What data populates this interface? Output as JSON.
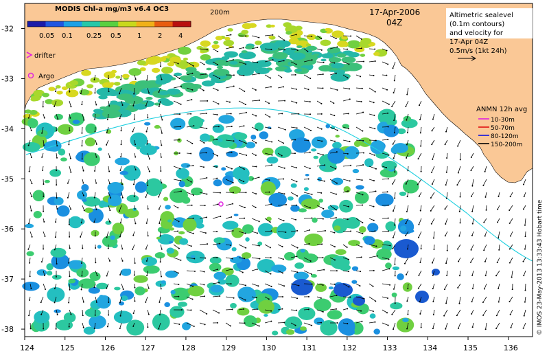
{
  "colorbar": {
    "title": "MODIS Chl-a mg/m3 v6.4 OC3",
    "ticks": [
      "0.05",
      "0.1",
      "0.25",
      "0.5",
      "1",
      "2",
      "4"
    ],
    "colors": [
      "#1a1aa8",
      "#1f55e0",
      "#1aa0e6",
      "#24c8a8",
      "#58d040",
      "#c8d81c",
      "#f0b018",
      "#e85c10",
      "#b81010"
    ]
  },
  "header": {
    "isobath_label": "200m",
    "date": "17-Apr-2006",
    "time": "04Z"
  },
  "legend_top": {
    "lines": [
      "Altimetric sealevel",
      "(0.1m contours)",
      "and velocity for",
      "17-Apr 04Z",
      "0.5m/s (1kt 24h)"
    ]
  },
  "legend_left": {
    "drifter": "drifter",
    "argo": "Argo"
  },
  "anmn": {
    "title": "ANMN 12h avg",
    "items": [
      {
        "label": "10-30m",
        "color": "#e020e0"
      },
      {
        "label": "50-70m",
        "color": "#e01010"
      },
      {
        "label": "80-120m",
        "color": "#1010e0"
      },
      {
        "label": "150-200m",
        "color": "#000000"
      }
    ]
  },
  "credit": "© IMOS 23-May-2013 13:33:43 Hobart time",
  "axes": {
    "x_ticks": [
      "124",
      "125",
      "126",
      "127",
      "128",
      "129",
      "130",
      "131",
      "132",
      "133",
      "134",
      "135",
      "136"
    ],
    "y_ticks": [
      "-32",
      "-33",
      "-34",
      "-35",
      "-36",
      "-37",
      "-38"
    ],
    "xlim": [
      124,
      136.6
    ],
    "ylim": [
      -38.15,
      -31.5
    ]
  },
  "colors": {
    "land": "#fac896",
    "ocean": "#ffffff",
    "isobath": "#20d0e0",
    "arrow": "#000000"
  }
}
